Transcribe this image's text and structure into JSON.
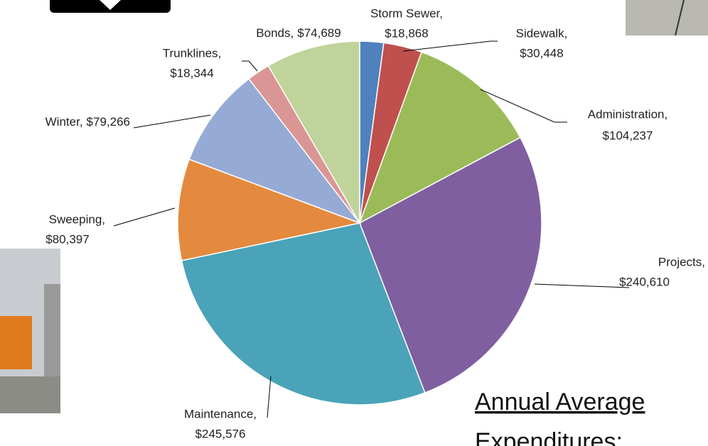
{
  "chart_data": {
    "type": "pie",
    "categories": [
      "Storm Sewer,",
      "Sidewalk,",
      "Administration,",
      "Projects,",
      "Maintenance,",
      "Sweeping,",
      "Winter,",
      "Trunklines,",
      "Bonds,"
    ],
    "values": [
      18868,
      30448,
      104237,
      240610,
      245576,
      80397,
      79266,
      18344,
      74689
    ],
    "value_labels": [
      "$18,868",
      "$30,448",
      "$104,237",
      "$240,610",
      "$245,576",
      "$80,397",
      "$79,266",
      "$18,344",
      "$74,689"
    ],
    "colors": [
      "#4f81bd",
      "#c0504d",
      "#9bbb59",
      "#7f5f9f",
      "#4aa3b8",
      "#e48a3f",
      "#95abd5",
      "#d99694",
      "#bfd39a"
    ]
  },
  "slide": {
    "heading": "Annual Average",
    "subheading": "Expenditures:"
  }
}
